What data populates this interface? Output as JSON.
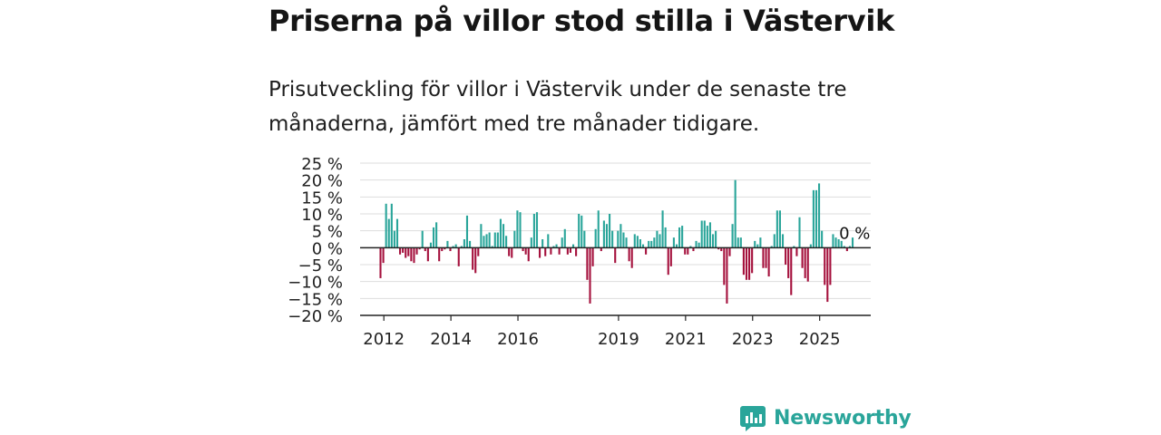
{
  "title": "Priserna på villor stod stilla i Västervik",
  "subtitle": "Prisutveckling för villor i Västervik under de senaste tre månaderna, jämfört med tre månader tidigare.",
  "brand": {
    "name": "Newsworthy"
  },
  "colors": {
    "positive": "#2aa59a",
    "negative": "#a5113d",
    "grid": "#dddddd",
    "axis": "#222222",
    "brand": "#2aa59a"
  },
  "chart_data": {
    "type": "bar",
    "title": "Priserna på villor stod stilla i Västervik",
    "ylim": [
      -20,
      25
    ],
    "yticks": [
      25,
      20,
      15,
      10,
      5,
      0,
      -5,
      -10,
      -15,
      -20
    ],
    "ytick_labels": [
      "25 %",
      "20 %",
      "15 %",
      "10 %",
      "5 %",
      "0 %",
      "−5 %",
      "−10 %",
      "−15 %",
      "−20 %"
    ],
    "xtick_labels": [
      {
        "label": "2012",
        "year": 2012
      },
      {
        "label": "2014",
        "year": 2014
      },
      {
        "label": "2016",
        "year": 2016
      },
      {
        "label": "2019",
        "year": 2019
      },
      {
        "label": "2021",
        "year": 2021
      },
      {
        "label": "2023",
        "year": 2023
      },
      {
        "label": "2025",
        "year": 2025
      }
    ],
    "start_year": 2011.9,
    "months_per_bar": 1,
    "annotation": {
      "text": "0 %",
      "value": 0
    },
    "grid": true,
    "values": [
      -9,
      -4.5,
      13,
      8.5,
      13,
      5,
      8.5,
      -2,
      -1.5,
      -3,
      -2.5,
      -4,
      -4.5,
      -2,
      -0.5,
      5,
      -1,
      -4,
      1.5,
      6,
      7.5,
      -4,
      -1,
      -0.5,
      2,
      -1,
      0.5,
      1,
      -5.5,
      0.5,
      2.5,
      9.5,
      2,
      -6.5,
      -7.5,
      -2.5,
      7,
      3.5,
      4,
      4.5,
      0.5,
      4.5,
      4.5,
      8.5,
      7,
      3.5,
      -2.5,
      -3,
      5,
      11,
      10.5,
      -1,
      -2,
      -4,
      3,
      10,
      10.5,
      -3,
      2.5,
      -2.5,
      4,
      -2,
      0.5,
      1,
      -2,
      3,
      5.5,
      -2,
      -1.5,
      1,
      -2.5,
      10,
      9.5,
      5,
      -9.5,
      -16.5,
      -5.5,
      5.5,
      11,
      -1,
      8,
      7,
      10,
      5,
      -4.5,
      5,
      7,
      4.5,
      3,
      -4,
      -6,
      4,
      3.5,
      2.5,
      1,
      -2,
      2,
      2,
      3,
      5,
      4,
      11,
      6,
      -8,
      -5.5,
      3,
      1,
      6,
      6.5,
      -2,
      -2,
      0.5,
      -1,
      2,
      1.5,
      8,
      8,
      6.5,
      7.5,
      4,
      5,
      -0.5,
      -1,
      -11,
      -16.5,
      -2.5,
      7,
      20,
      3,
      3,
      -8,
      -9.5,
      -9.5,
      -7.5,
      2,
      1,
      3,
      -6,
      -6,
      -8.5,
      0.5,
      4,
      11,
      11,
      4,
      -5,
      -9,
      -14,
      0.5,
      -2.5,
      9,
      -6,
      -9,
      -10,
      1,
      17,
      17,
      19,
      5,
      -11,
      -16,
      -11,
      4,
      3,
      2.5,
      2,
      0.5,
      -1,
      0.5,
      3,
      0
    ]
  }
}
